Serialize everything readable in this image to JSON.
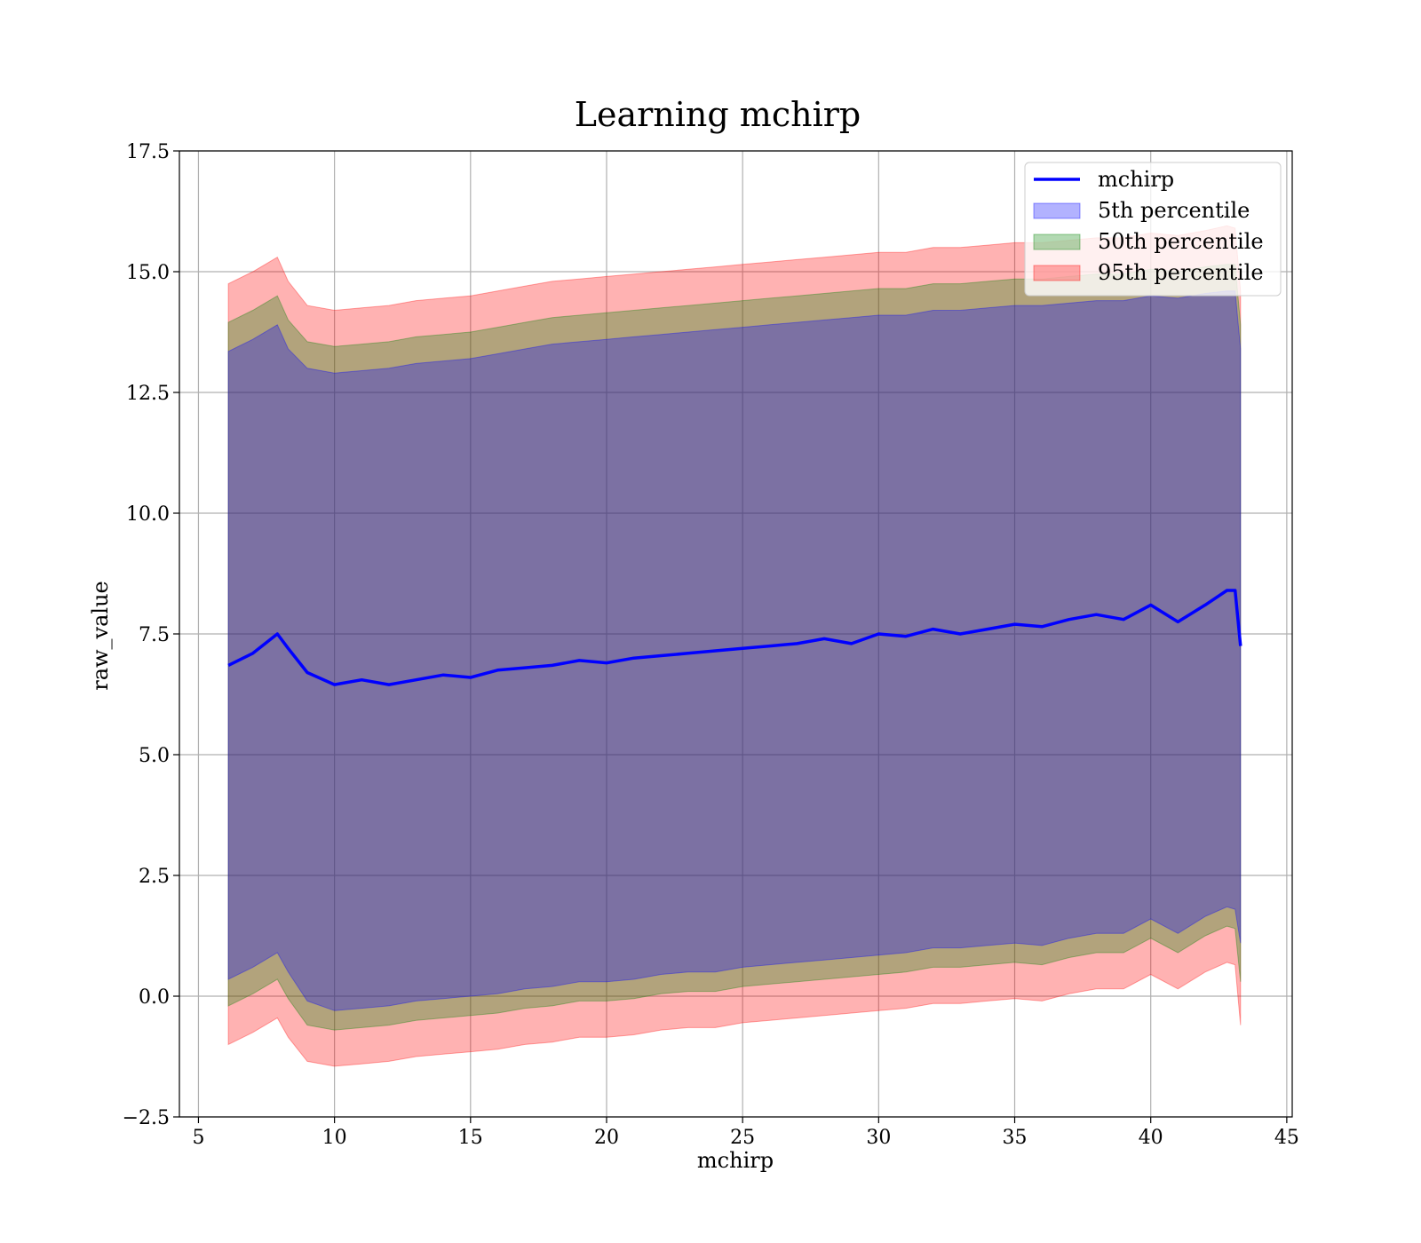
{
  "chart_data": {
    "type": "line",
    "title": "Learning mchirp",
    "xlabel": "mchirp",
    "ylabel": "raw_value",
    "xlim": [
      4.3,
      45.2
    ],
    "ylim": [
      -2.5,
      17.5
    ],
    "xticks": [
      5,
      10,
      15,
      20,
      25,
      30,
      35,
      40,
      45
    ],
    "xtick_labels": [
      "5",
      "10",
      "15",
      "20",
      "25",
      "30",
      "35",
      "40",
      "45"
    ],
    "yticks": [
      -2.5,
      0.0,
      2.5,
      5.0,
      7.5,
      10.0,
      12.5,
      15.0,
      17.5
    ],
    "ytick_labels": [
      "−2.5",
      "0.0",
      "2.5",
      "5.0",
      "7.5",
      "10.0",
      "12.5",
      "15.0",
      "17.5"
    ],
    "grid": true,
    "legend_position": "top-right",
    "x": [
      6.1,
      7.0,
      7.9,
      8.3,
      9.0,
      10.0,
      11.0,
      12.0,
      13.0,
      14.0,
      15.0,
      16.0,
      17.0,
      18.0,
      19.0,
      20.0,
      21.0,
      22.0,
      23.0,
      24.0,
      25.0,
      26.0,
      27.0,
      28.0,
      29.0,
      30.0,
      31.0,
      32.0,
      33.0,
      34.0,
      35.0,
      36.0,
      37.0,
      38.0,
      39.0,
      40.0,
      41.0,
      42.0,
      42.8,
      43.1,
      43.3
    ],
    "series": [
      {
        "name": "mchirp",
        "kind": "line",
        "color": "#0000ff",
        "values": [
          6.85,
          7.1,
          7.5,
          7.2,
          6.7,
          6.45,
          6.55,
          6.45,
          6.55,
          6.65,
          6.6,
          6.75,
          6.8,
          6.85,
          6.95,
          6.9,
          7.0,
          7.05,
          7.1,
          7.15,
          7.2,
          7.25,
          7.3,
          7.4,
          7.3,
          7.5,
          7.45,
          7.6,
          7.5,
          7.6,
          7.7,
          7.65,
          7.8,
          7.9,
          7.8,
          8.1,
          7.75,
          8.1,
          8.4,
          8.4,
          7.25
        ]
      },
      {
        "name": "5th percentile",
        "kind": "band",
        "color": "#0000ff",
        "lower": [
          0.35,
          0.6,
          0.9,
          0.5,
          -0.1,
          -0.3,
          -0.25,
          -0.2,
          -0.1,
          -0.05,
          0.0,
          0.05,
          0.15,
          0.2,
          0.3,
          0.3,
          0.35,
          0.45,
          0.5,
          0.5,
          0.6,
          0.65,
          0.7,
          0.75,
          0.8,
          0.85,
          0.9,
          1.0,
          1.0,
          1.05,
          1.1,
          1.05,
          1.2,
          1.3,
          1.3,
          1.6,
          1.3,
          1.65,
          1.85,
          1.8,
          1.1
        ],
        "upper": [
          13.35,
          13.6,
          13.9,
          13.4,
          13.0,
          12.9,
          12.95,
          13.0,
          13.1,
          13.15,
          13.2,
          13.3,
          13.4,
          13.5,
          13.55,
          13.6,
          13.65,
          13.7,
          13.75,
          13.8,
          13.85,
          13.9,
          13.95,
          14.0,
          14.05,
          14.1,
          14.1,
          14.2,
          14.2,
          14.25,
          14.3,
          14.3,
          14.35,
          14.4,
          14.4,
          14.5,
          14.45,
          14.55,
          14.6,
          14.6,
          13.4
        ]
      },
      {
        "name": "50th percentile",
        "kind": "band",
        "color": "#008000",
        "lower": [
          -0.2,
          0.05,
          0.35,
          -0.05,
          -0.6,
          -0.7,
          -0.65,
          -0.6,
          -0.5,
          -0.45,
          -0.4,
          -0.35,
          -0.25,
          -0.2,
          -0.1,
          -0.1,
          -0.05,
          0.05,
          0.1,
          0.1,
          0.2,
          0.25,
          0.3,
          0.35,
          0.4,
          0.45,
          0.5,
          0.6,
          0.6,
          0.65,
          0.7,
          0.65,
          0.8,
          0.9,
          0.9,
          1.2,
          0.9,
          1.25,
          1.45,
          1.4,
          0.3
        ],
        "upper": [
          13.95,
          14.2,
          14.5,
          14.0,
          13.55,
          13.45,
          13.5,
          13.55,
          13.65,
          13.7,
          13.75,
          13.85,
          13.95,
          14.05,
          14.1,
          14.15,
          14.2,
          14.25,
          14.3,
          14.35,
          14.4,
          14.45,
          14.5,
          14.55,
          14.6,
          14.65,
          14.65,
          14.75,
          14.75,
          14.8,
          14.85,
          14.85,
          14.9,
          14.95,
          14.95,
          15.05,
          15.0,
          15.1,
          15.15,
          15.15,
          13.9
        ]
      },
      {
        "name": "95th percentile",
        "kind": "band",
        "color": "#ff0000",
        "lower": [
          -1.0,
          -0.75,
          -0.45,
          -0.85,
          -1.35,
          -1.45,
          -1.4,
          -1.35,
          -1.25,
          -1.2,
          -1.15,
          -1.1,
          -1.0,
          -0.95,
          -0.85,
          -0.85,
          -0.8,
          -0.7,
          -0.65,
          -0.65,
          -0.55,
          -0.5,
          -0.45,
          -0.4,
          -0.35,
          -0.3,
          -0.25,
          -0.15,
          -0.15,
          -0.1,
          -0.05,
          -0.1,
          0.05,
          0.15,
          0.15,
          0.45,
          0.15,
          0.5,
          0.7,
          0.65,
          -0.6
        ],
        "upper": [
          14.75,
          15.0,
          15.3,
          14.8,
          14.3,
          14.2,
          14.25,
          14.3,
          14.4,
          14.45,
          14.5,
          14.6,
          14.7,
          14.8,
          14.85,
          14.9,
          14.95,
          15.0,
          15.05,
          15.1,
          15.15,
          15.2,
          15.25,
          15.3,
          15.35,
          15.4,
          15.4,
          15.5,
          15.5,
          15.55,
          15.6,
          15.6,
          15.65,
          15.7,
          15.7,
          15.8,
          15.75,
          15.85,
          15.95,
          15.9,
          14.6
        ]
      }
    ]
  }
}
